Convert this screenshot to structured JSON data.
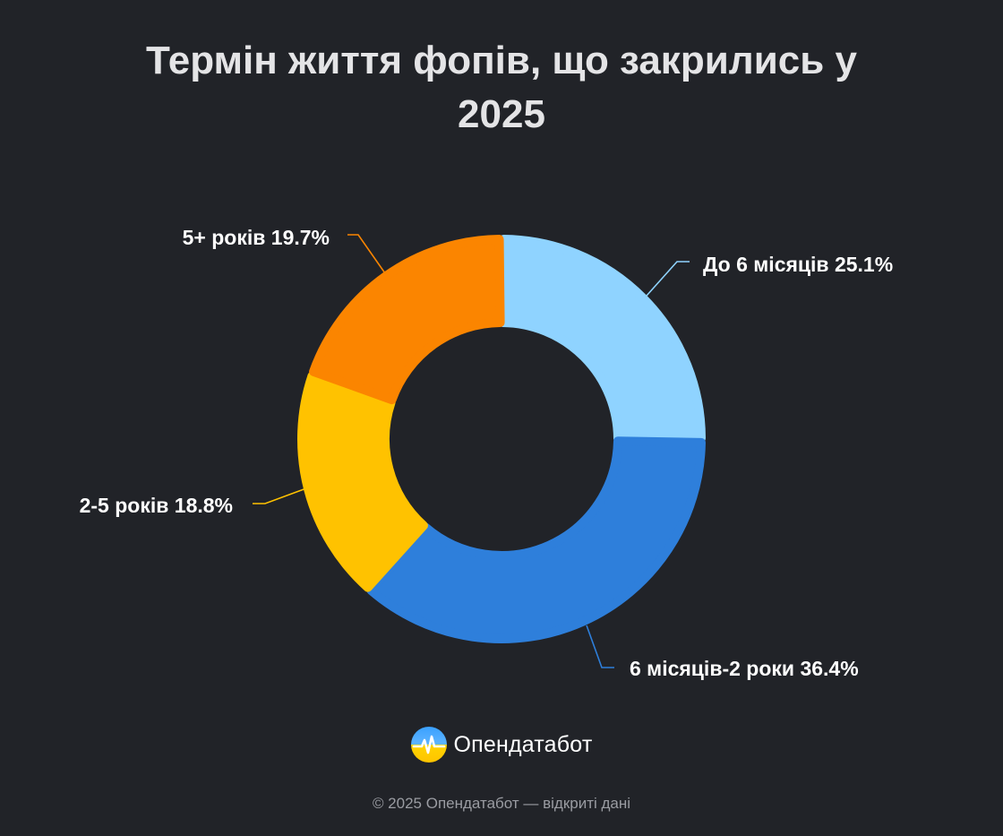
{
  "title_lines": [
    "Термін життя фопів, що закрились у",
    "2025"
  ],
  "chart_data": {
    "type": "pie",
    "variant": "donut",
    "title": "Термін життя фопів, що закрились у 2025",
    "categories": [
      "До 6 місяців",
      "6 місяців-2 роки",
      "2-5 років",
      "5+ років"
    ],
    "values": [
      25.1,
      36.4,
      18.8,
      19.7
    ],
    "unit": "%",
    "labels": [
      "До 6 місяців 25.1%",
      "6 місяців-2 роки 36.4%",
      "2-5 років 18.8%",
      "5+ років 19.7%"
    ],
    "colors": [
      "#8fd3ff",
      "#2e7fdb",
      "#ffc200",
      "#fb8500"
    ],
    "start": "top",
    "direction": "clockwise"
  },
  "brand": {
    "name": "Опендатабот"
  },
  "footer": {
    "text": "© 2025 Опендатабот — відкриті дані"
  }
}
